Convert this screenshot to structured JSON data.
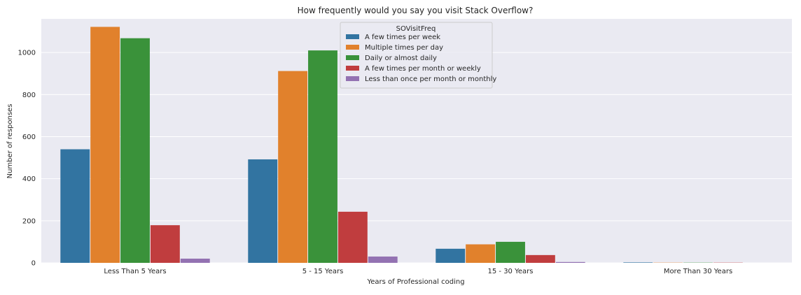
{
  "chart_data": {
    "type": "bar",
    "title": "How frequently would you say you visit Stack Overflow?",
    "xlabel": "Years of Professional coding",
    "ylabel": "Number of responses",
    "categories": [
      "Less Than 5 Years",
      "5 - 15 Years",
      "15 - 30 Years",
      "More Than 30 Years"
    ],
    "ylim": [
      0,
      1160
    ],
    "yticks": [
      0,
      200,
      400,
      600,
      800,
      1000
    ],
    "grid": true,
    "legend": {
      "title": "SOVisitFreq",
      "placement": "top-center"
    },
    "series": [
      {
        "name": "A few times per week",
        "color": "#3274a1",
        "values": [
          540,
          492,
          67,
          2
        ]
      },
      {
        "name": "Multiple times per day",
        "color": "#e1812c",
        "values": [
          1122,
          912,
          88,
          1
        ]
      },
      {
        "name": "Daily or almost daily",
        "color": "#3a923a",
        "values": [
          1068,
          1010,
          100,
          1
        ]
      },
      {
        "name": "A few times per month or weekly",
        "color": "#c03d3e",
        "values": [
          179,
          243,
          37,
          1
        ]
      },
      {
        "name": "Less than once per month or monthly",
        "color": "#9372b2",
        "values": [
          20,
          30,
          4,
          0
        ]
      }
    ]
  }
}
